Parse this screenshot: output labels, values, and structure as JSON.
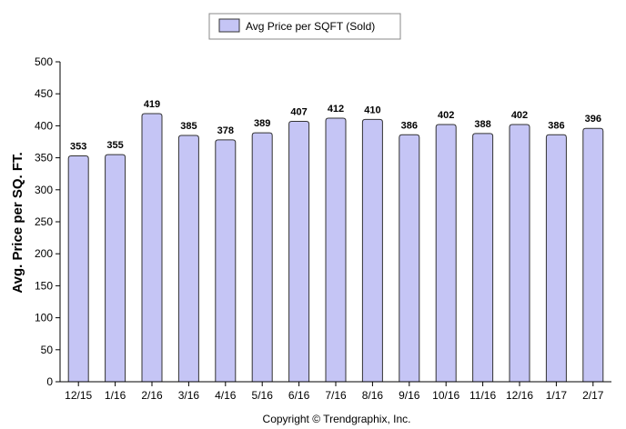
{
  "chart_data": {
    "type": "bar",
    "categories": [
      "12/15",
      "1/16",
      "2/16",
      "3/16",
      "4/16",
      "5/16",
      "6/16",
      "7/16",
      "8/16",
      "9/16",
      "10/16",
      "11/16",
      "12/16",
      "1/17",
      "2/17"
    ],
    "series": [
      {
        "name": "Avg Price per SQFT (Sold)",
        "values": [
          353,
          355,
          419,
          385,
          378,
          389,
          407,
          412,
          410,
          386,
          402,
          388,
          402,
          386,
          396
        ]
      }
    ],
    "ylabel": "Avg. Price per SQ. FT.",
    "xlabel": "",
    "ylim": [
      0,
      500
    ],
    "yticks": [
      0,
      50,
      100,
      150,
      200,
      250,
      300,
      350,
      400,
      450,
      500
    ],
    "legend_position": "top-center",
    "grid": false,
    "bar_color": "#c5c5f5",
    "bar_outline": "#333333"
  },
  "footer": {
    "copyright": "Copyright © Trendgraphix, Inc."
  }
}
